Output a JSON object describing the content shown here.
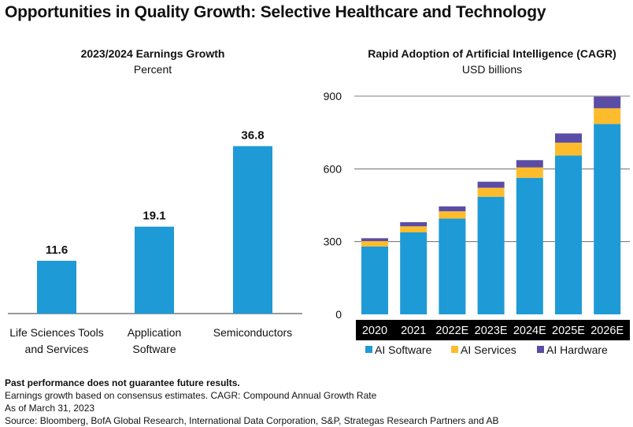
{
  "title": "Opportunities in Quality Growth: Selective Healthcare and Technology",
  "chart_data": [
    {
      "type": "bar",
      "title": "2023/2024 Earnings Growth",
      "subtitle": "Percent",
      "categories": [
        [
          "Life Sciences Tools",
          "and Services"
        ],
        [
          "Application",
          "Software"
        ],
        [
          "Semiconductors"
        ]
      ],
      "values": [
        11.6,
        19.1,
        36.8
      ],
      "data_labels": [
        "11.6",
        "19.1",
        "36.8"
      ],
      "ylim": [
        0,
        40
      ],
      "grid": false,
      "color": "#1e9ad6"
    },
    {
      "type": "bar",
      "stacked": true,
      "title": "Rapid Adoption of Artificial Intelligence (CAGR)",
      "subtitle": "USD billions",
      "categories": [
        "2020",
        "2021",
        "2022E",
        "2023E",
        "2024E",
        "2025E",
        "2026E"
      ],
      "series": [
        {
          "name": "AI Software",
          "values": [
            280,
            338,
            395,
            485,
            563,
            655,
            785
          ],
          "color": "#1e9ad6"
        },
        {
          "name": "AI Services",
          "values": [
            22,
            25,
            30,
            37,
            43,
            53,
            65
          ],
          "color": "#fdbc2c"
        },
        {
          "name": "AI Hardware",
          "values": [
            12,
            17,
            20,
            25,
            30,
            38,
            48
          ],
          "color": "#5b4ca6"
        }
      ],
      "yticks": [
        "0",
        "300",
        "600",
        "900"
      ],
      "ylim": [
        0,
        900
      ],
      "grid": true,
      "legend_position": "bottom"
    }
  ],
  "footnotes": {
    "disclaimer": "Past performance does not guarantee future results.",
    "line1": "Earnings growth based on consensus estimates. CAGR: Compound Annual Growth Rate",
    "line2": "As of March 31, 2023",
    "line3": "Source: Bloomberg, BofA Global Research, International Data Corporation, S&P, Strategas Research Partners and AB"
  }
}
